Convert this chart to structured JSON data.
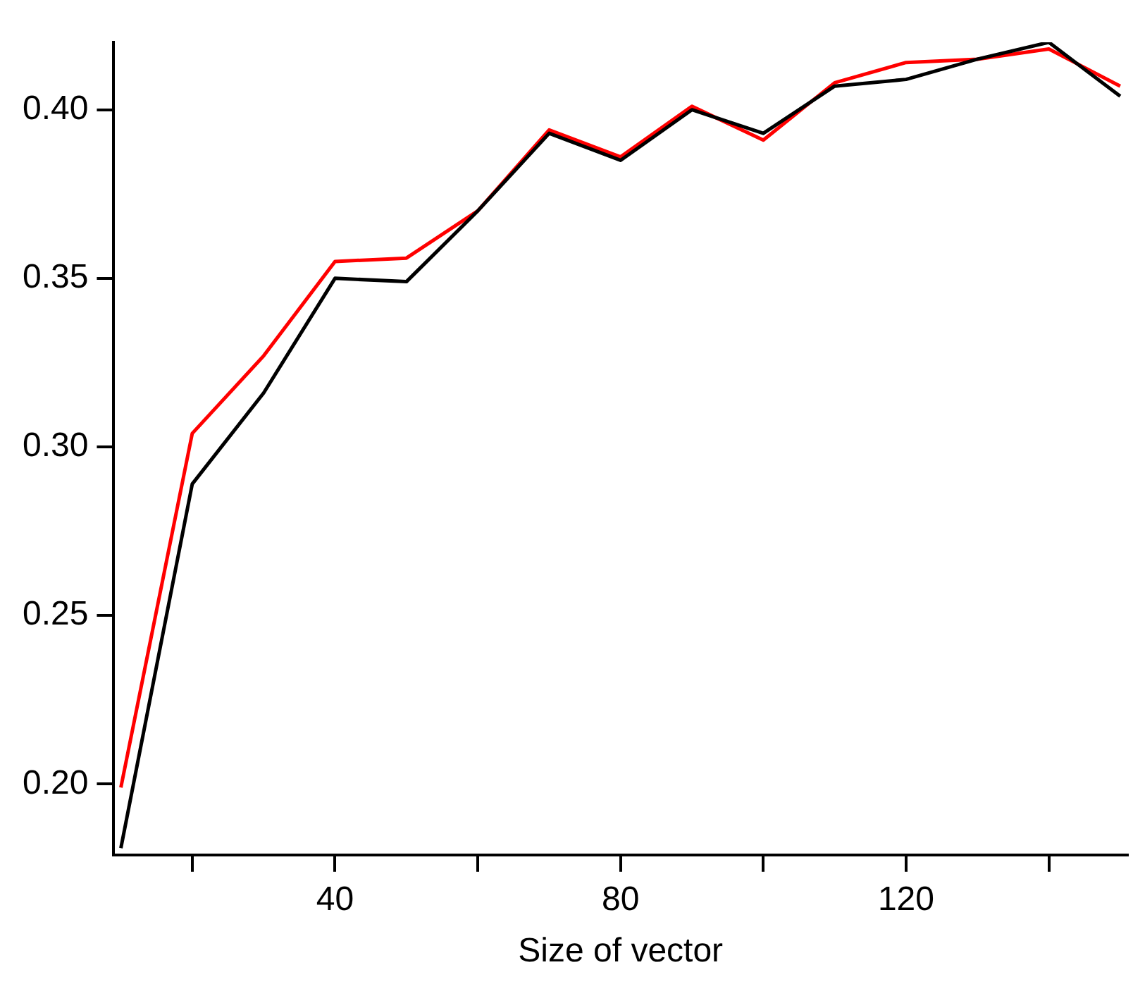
{
  "chart_data": {
    "type": "line",
    "xlabel": "Size of vector",
    "x": [
      10,
      20,
      30,
      40,
      50,
      60,
      70,
      80,
      90,
      100,
      110,
      120,
      130,
      140,
      150
    ],
    "series": [
      {
        "color": "#ff0000",
        "values": [
          0.199,
          0.304,
          0.327,
          0.355,
          0.356,
          0.37,
          0.394,
          0.386,
          0.401,
          0.391,
          0.408,
          0.414,
          0.415,
          0.418,
          0.407
        ]
      },
      {
        "color": "#000000",
        "values": [
          0.181,
          0.289,
          0.316,
          0.35,
          0.349,
          0.37,
          0.393,
          0.385,
          0.4,
          0.393,
          0.407,
          0.409,
          0.415,
          0.42,
          0.404
        ]
      }
    ],
    "xlim": [
      9,
      151
    ],
    "xticks": [
      {
        "value": 20,
        "label": null
      },
      40,
      {
        "value": 60,
        "label": null
      },
      80,
      {
        "value": 100,
        "label": null
      },
      120,
      {
        "value": 140,
        "label": null
      }
    ],
    "ylim": [
      0.179,
      0.42
    ],
    "yticks": [
      {
        "value": 0.2,
        "label": "0.20"
      },
      {
        "value": 0.25,
        "label": "0.25"
      },
      {
        "value": 0.3,
        "label": "0.30"
      },
      {
        "value": 0.35,
        "label": "0.35"
      },
      {
        "value": 0.4,
        "label": "0.40"
      }
    ],
    "grid": false,
    "legend": false,
    "marker": "none",
    "line_style": "solid"
  }
}
